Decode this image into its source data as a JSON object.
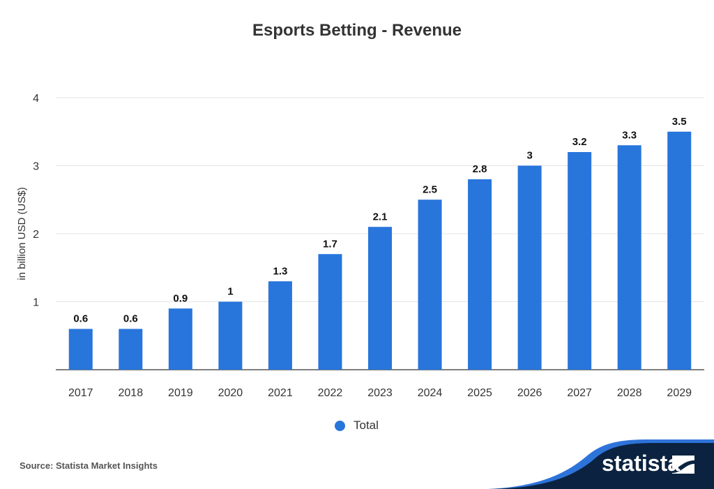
{
  "chart_data": {
    "type": "bar",
    "title": "Esports Betting - Revenue",
    "ylabel": "in billion USD (US$)",
    "xlabel": "",
    "categories": [
      "2017",
      "2018",
      "2019",
      "2020",
      "2021",
      "2022",
      "2023",
      "2024",
      "2025",
      "2026",
      "2027",
      "2028",
      "2029"
    ],
    "series": [
      {
        "name": "Total",
        "values": [
          0.6,
          0.6,
          0.9,
          1,
          1.3,
          1.7,
          2.1,
          2.5,
          2.8,
          3,
          3.2,
          3.3,
          3.5
        ]
      }
    ],
    "ylim": [
      0,
      4
    ],
    "yticks": [
      1,
      2,
      3,
      4
    ],
    "grid": true,
    "legend_placement": "bottom",
    "colors": {
      "bar": "#2875dc",
      "logo_dark": "#0b2340",
      "logo_wave": "#2e73d9"
    }
  },
  "source": "Source: Statista Market Insights",
  "logo": "statista"
}
